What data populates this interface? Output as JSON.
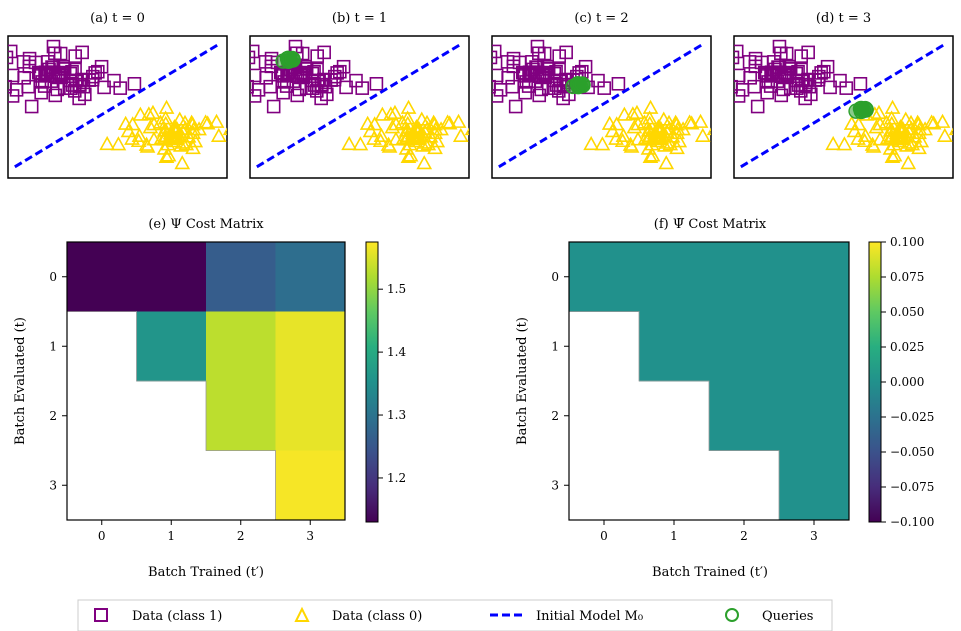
{
  "colors": {
    "class1": "#800080",
    "class0": "#FFD700",
    "model_line": "#0000FF",
    "queries": "#2CA02C"
  },
  "scatter_titles": [
    "(a) t = 0",
    "(b) t = 1",
    "(c) t = 2",
    "(d) t = 3"
  ],
  "legend": {
    "class1": "Data (class 1)",
    "class0": "Data (class 0)",
    "model": "Initial Model M₀",
    "queries": "Queries"
  },
  "chart_data": [
    {
      "type": "scatter",
      "title": "(a) t = 0",
      "series": [
        {
          "name": "Data (class 1)",
          "marker": "square",
          "color": "#800080",
          "center": [
            -0.8,
            0.45
          ],
          "spread": [
            0.38,
            0.16
          ],
          "count": 70
        },
        {
          "name": "Data (class 0)",
          "marker": "triangle",
          "color": "#FFD700",
          "center": [
            0.8,
            -0.35
          ],
          "spread": [
            0.36,
            0.16
          ],
          "count": 70
        },
        {
          "name": "Initial Model M₀",
          "type": "line",
          "style": "dashed",
          "color": "#0000FF",
          "x": [
            -1.5,
            1.5
          ],
          "y": [
            -0.8,
            0.85
          ]
        }
      ],
      "queries": null
    },
    {
      "type": "scatter",
      "title": "(b) t = 1",
      "series": [
        {
          "name": "Data (class 1)",
          "marker": "square",
          "color": "#800080",
          "center": [
            -0.8,
            0.45
          ],
          "spread": [
            0.38,
            0.16
          ],
          "count": 70
        },
        {
          "name": "Data (class 0)",
          "marker": "triangle",
          "color": "#FFD700",
          "center": [
            0.8,
            -0.35
          ],
          "spread": [
            0.36,
            0.16
          ],
          "count": 70
        },
        {
          "name": "Initial Model M₀",
          "type": "line",
          "style": "dashed",
          "color": "#0000FF",
          "x": [
            -1.5,
            1.5
          ],
          "y": [
            -0.8,
            0.85
          ]
        }
      ],
      "queries": {
        "name": "Queries",
        "center": [
          -1.0,
          0.62
        ],
        "count": 10
      }
    },
    {
      "type": "scatter",
      "title": "(c) t = 2",
      "series": [
        {
          "name": "Data (class 1)",
          "marker": "square",
          "color": "#800080",
          "center": [
            -0.8,
            0.45
          ],
          "spread": [
            0.38,
            0.16
          ],
          "count": 70
        },
        {
          "name": "Data (class 0)",
          "marker": "triangle",
          "color": "#FFD700",
          "center": [
            0.8,
            -0.35
          ],
          "spread": [
            0.36,
            0.16
          ],
          "count": 70
        },
        {
          "name": "Initial Model M₀",
          "type": "line",
          "style": "dashed",
          "color": "#0000FF",
          "x": [
            -1.5,
            1.5
          ],
          "y": [
            -0.8,
            0.85
          ]
        }
      ],
      "queries": {
        "name": "Queries",
        "center": [
          -0.3,
          0.28
        ],
        "count": 10
      }
    },
    {
      "type": "scatter",
      "title": "(d) t = 3",
      "series": [
        {
          "name": "Data (class 1)",
          "marker": "square",
          "color": "#800080",
          "center": [
            -0.8,
            0.45
          ],
          "spread": [
            0.38,
            0.16
          ],
          "count": 70
        },
        {
          "name": "Data (class 0)",
          "marker": "triangle",
          "color": "#FFD700",
          "center": [
            0.8,
            -0.35
          ],
          "spread": [
            0.36,
            0.16
          ],
          "count": 70
        },
        {
          "name": "Initial Model M₀",
          "type": "line",
          "style": "dashed",
          "color": "#0000FF",
          "x": [
            -1.5,
            1.5
          ],
          "y": [
            -0.8,
            0.85
          ]
        }
      ],
      "queries": {
        "name": "Queries",
        "center": [
          0.3,
          -0.05
        ],
        "count": 10
      }
    },
    {
      "type": "heatmap",
      "title": "(e) Ψ Cost Matrix",
      "xlabel": "Batch Trained (t′)",
      "ylabel": "Batch Evaluated (t)",
      "x_ticks": [
        "0",
        "1",
        "2",
        "3"
      ],
      "y_ticks": [
        "0",
        "1",
        "2",
        "3"
      ],
      "values": [
        [
          1.13,
          1.13,
          1.26,
          1.29
        ],
        [
          null,
          1.36,
          1.53,
          1.56
        ],
        [
          null,
          null,
          1.53,
          1.56
        ],
        [
          null,
          null,
          null,
          1.57
        ]
      ],
      "colorbar": {
        "min": 1.13,
        "max": 1.575,
        "ticks": [
          1.2,
          1.3,
          1.4,
          1.5
        ],
        "tick_labels": [
          "1.2",
          "1.3",
          "1.4",
          "1.5"
        ]
      }
    },
    {
      "type": "heatmap",
      "title": "(f) Ψ̅ Cost Matrix",
      "xlabel": "Batch Trained (t′)",
      "ylabel": "Batch Evaluated (t)",
      "x_ticks": [
        "0",
        "1",
        "2",
        "3"
      ],
      "y_ticks": [
        "0",
        "1",
        "2",
        "3"
      ],
      "values": [
        [
          0.0,
          0.0,
          0.0,
          0.0
        ],
        [
          null,
          0.0,
          0.0,
          0.0
        ],
        [
          null,
          null,
          0.0,
          0.0
        ],
        [
          null,
          null,
          null,
          0.0
        ]
      ],
      "colorbar": {
        "min": -0.1,
        "max": 0.1,
        "ticks": [
          0.1,
          0.075,
          0.05,
          0.025,
          0.0,
          -0.025,
          -0.05,
          -0.075,
          -0.1
        ],
        "tick_labels": [
          "0.100",
          "0.075",
          "0.050",
          "0.025",
          "0.000",
          "−0.025",
          "−0.050",
          "−0.075",
          "−0.100"
        ]
      }
    }
  ]
}
